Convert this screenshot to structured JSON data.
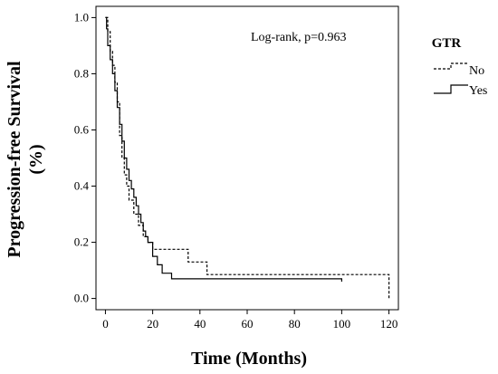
{
  "chart_data": {
    "type": "line",
    "subtype": "kaplan-meier",
    "xlabel": "Time (Months)",
    "ylabel": "Progression-free Survival (%)",
    "ylabel_lines": [
      "Progression-free Survival",
      "(%)"
    ],
    "xlim": [
      -4,
      124
    ],
    "ylim": [
      -0.04,
      1.04
    ],
    "x_ticks": [
      0,
      20,
      40,
      60,
      80,
      100,
      120
    ],
    "y_ticks": [
      0.0,
      0.2,
      0.4,
      0.6,
      0.8,
      1.0
    ],
    "y_tick_labels": [
      "0.0",
      "0.2",
      "0.4",
      "0.6",
      "0.8",
      "1.0"
    ],
    "annotation": "Log-rank, p=0.963",
    "legend": {
      "title": "GTR",
      "placement": "right"
    },
    "series": [
      {
        "name": "No",
        "line_style": "dashed",
        "color": "#000000",
        "x": [
          0,
          1,
          2,
          3,
          4,
          5,
          6,
          7,
          8,
          9,
          10,
          12,
          14,
          16,
          18,
          20,
          35,
          43,
          120
        ],
        "y": [
          1.0,
          0.95,
          0.88,
          0.83,
          0.77,
          0.7,
          0.58,
          0.5,
          0.44,
          0.4,
          0.35,
          0.3,
          0.26,
          0.22,
          0.2,
          0.175,
          0.13,
          0.085,
          0.0
        ]
      },
      {
        "name": "Yes",
        "line_style": "solid",
        "color": "#000000",
        "x": [
          0,
          0.5,
          1,
          2,
          3,
          4,
          5,
          6,
          7,
          8,
          9,
          10,
          11,
          12,
          13,
          14,
          15,
          16,
          17,
          18,
          20,
          22,
          24,
          28,
          100
        ],
        "y": [
          1.0,
          0.96,
          0.9,
          0.85,
          0.8,
          0.74,
          0.68,
          0.62,
          0.56,
          0.5,
          0.46,
          0.42,
          0.39,
          0.36,
          0.33,
          0.3,
          0.27,
          0.24,
          0.22,
          0.2,
          0.15,
          0.12,
          0.09,
          0.07,
          0.06
        ]
      }
    ]
  }
}
